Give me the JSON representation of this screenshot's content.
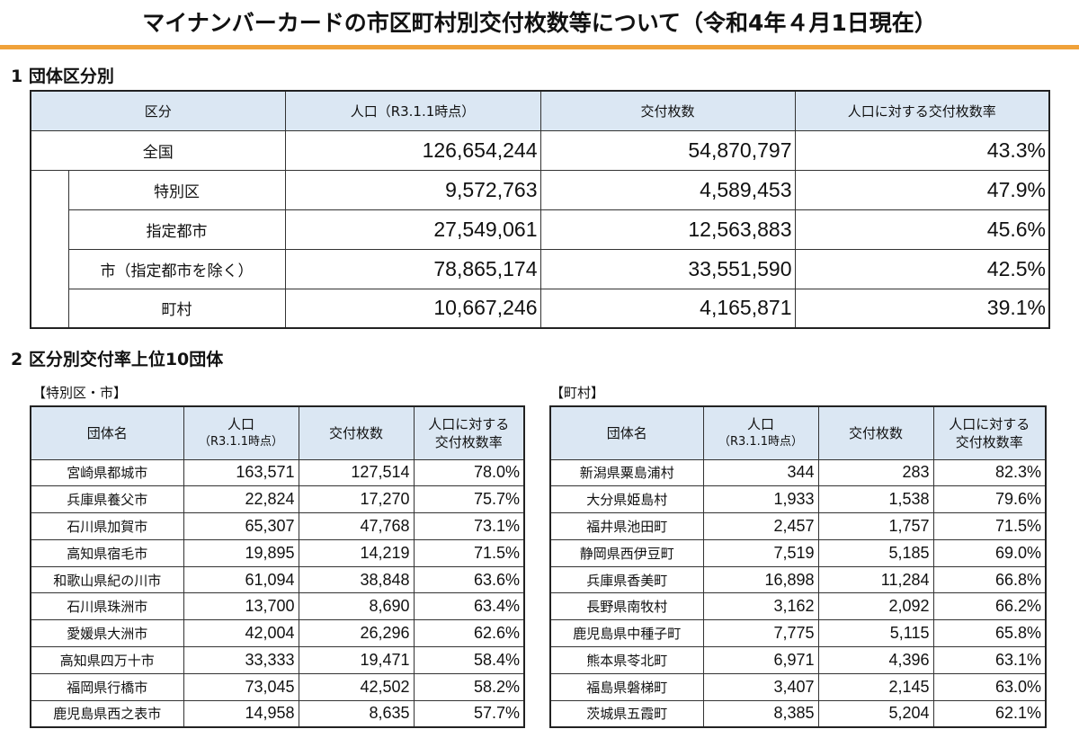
{
  "title": "マイナンバーカードの市区町村別交付枚数等について（令和4年４月1日現在）",
  "section1": {
    "heading": "1 団体区分別",
    "headers": [
      "区分",
      "人口（R3.1.1時点）",
      "交付枚数",
      "人口に対する交付枚数率"
    ],
    "rows": [
      {
        "label": "全国",
        "population": "126,654,244",
        "issued": "54,870,797",
        "rate": "43.3%"
      },
      {
        "label": "特別区",
        "population": "9,572,763",
        "issued": "4,589,453",
        "rate": "47.9%"
      },
      {
        "label": "指定都市",
        "population": "27,549,061",
        "issued": "12,563,883",
        "rate": "45.6%"
      },
      {
        "label": "市（指定都市を除く）",
        "population": "78,865,174",
        "issued": "33,551,590",
        "rate": "42.5%"
      },
      {
        "label": "町村",
        "population": "10,667,246",
        "issued": "4,165,871",
        "rate": "39.1%"
      }
    ]
  },
  "section2": {
    "heading": "2 区分別交付率上位10団体",
    "cities": {
      "heading": "【特別区・市】",
      "headers": {
        "name": "団体名",
        "pop_line1": "人口",
        "pop_line2": "（R3.1.1時点）",
        "issued": "交付枚数",
        "rate_line1": "人口に対する",
        "rate_line2": "交付枚数率"
      },
      "rows": [
        {
          "name": "宮崎県都城市",
          "population": "163,571",
          "issued": "127,514",
          "rate": "78.0%"
        },
        {
          "name": "兵庫県養父市",
          "population": "22,824",
          "issued": "17,270",
          "rate": "75.7%"
        },
        {
          "name": "石川県加賀市",
          "population": "65,307",
          "issued": "47,768",
          "rate": "73.1%"
        },
        {
          "name": "高知県宿毛市",
          "population": "19,895",
          "issued": "14,219",
          "rate": "71.5%"
        },
        {
          "name": "和歌山県紀の川市",
          "population": "61,094",
          "issued": "38,848",
          "rate": "63.6%"
        },
        {
          "name": "石川県珠洲市",
          "population": "13,700",
          "issued": "8,690",
          "rate": "63.4%"
        },
        {
          "name": "愛媛県大洲市",
          "population": "42,004",
          "issued": "26,296",
          "rate": "62.6%"
        },
        {
          "name": "高知県四万十市",
          "population": "33,333",
          "issued": "19,471",
          "rate": "58.4%"
        },
        {
          "name": "福岡県行橋市",
          "population": "73,045",
          "issued": "42,502",
          "rate": "58.2%"
        },
        {
          "name": "鹿児島県西之表市",
          "population": "14,958",
          "issued": "8,635",
          "rate": "57.7%"
        }
      ]
    },
    "towns": {
      "heading": "【町村】",
      "headers": {
        "name": "団体名",
        "pop_line1": "人口",
        "pop_line2": "（R3.1.1時点）",
        "issued": "交付枚数",
        "rate_line1": "人口に対する",
        "rate_line2": "交付枚数率"
      },
      "rows": [
        {
          "name": "新潟県粟島浦村",
          "population": "344",
          "issued": "283",
          "rate": "82.3%"
        },
        {
          "name": "大分県姫島村",
          "population": "1,933",
          "issued": "1,538",
          "rate": "79.6%"
        },
        {
          "name": "福井県池田町",
          "population": "2,457",
          "issued": "1,757",
          "rate": "71.5%"
        },
        {
          "name": "静岡県西伊豆町",
          "population": "7,519",
          "issued": "5,185",
          "rate": "69.0%"
        },
        {
          "name": "兵庫県香美町",
          "population": "16,898",
          "issued": "11,284",
          "rate": "66.8%"
        },
        {
          "name": "長野県南牧村",
          "population": "3,162",
          "issued": "2,092",
          "rate": "66.2%"
        },
        {
          "name": "鹿児島県中種子町",
          "population": "7,775",
          "issued": "5,115",
          "rate": "65.8%"
        },
        {
          "name": "熊本県苓北町",
          "population": "6,971",
          "issued": "4,396",
          "rate": "63.1%"
        },
        {
          "name": "福島県磐梯町",
          "population": "3,407",
          "issued": "2,145",
          "rate": "63.0%"
        },
        {
          "name": "茨城県五霞町",
          "population": "8,385",
          "issued": "5,204",
          "rate": "62.1%"
        }
      ]
    }
  },
  "colors": {
    "header_fill": "#dbe7f3",
    "title_rule": "#f0a23a"
  }
}
